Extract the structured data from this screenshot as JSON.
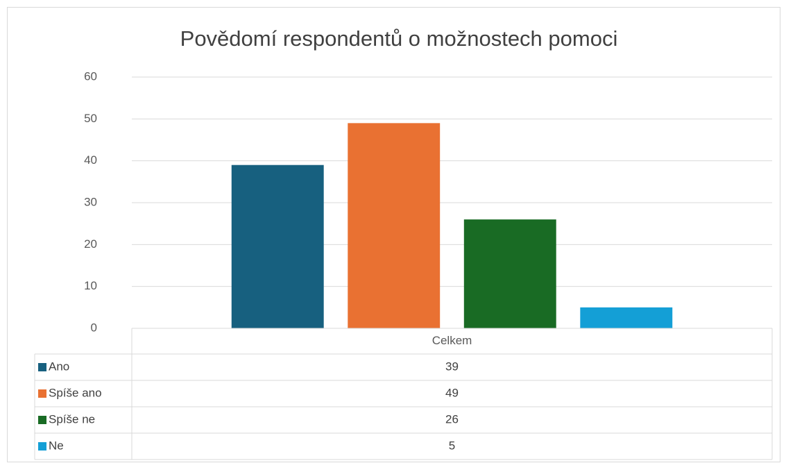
{
  "chart_data": {
    "type": "bar",
    "title": "Povědomí respondentů o možnostech pomoci",
    "categories": [
      "Celkem"
    ],
    "series": [
      {
        "name": "Ano",
        "color": "#17607f",
        "values": [
          39
        ]
      },
      {
        "name": "Spíše ano",
        "color": "#e97132",
        "values": [
          49
        ]
      },
      {
        "name": "Spíše ne",
        "color": "#196b24",
        "values": [
          26
        ]
      },
      {
        "name": "Ne",
        "color": "#149fd6",
        "values": [
          5
        ]
      }
    ],
    "ylim": [
      0,
      60
    ],
    "yticks": [
      0,
      10,
      20,
      30,
      40,
      50,
      60
    ],
    "grid": true,
    "data_table": true
  }
}
